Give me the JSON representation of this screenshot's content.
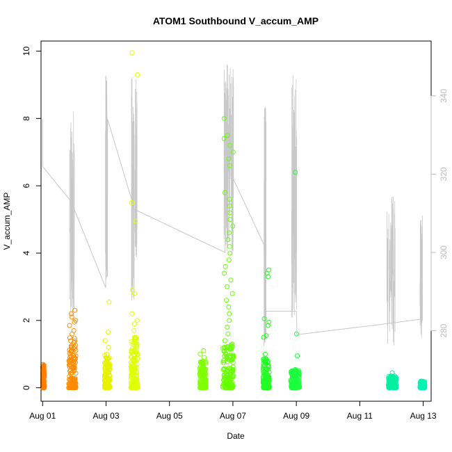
{
  "chart_data": {
    "type": "scatter",
    "title": "ATOM1 Southbound V_accum_AMP",
    "xlabel": "Date",
    "ylabel": "V_accum_AMP",
    "xlim": [
      -0.05,
      12.25
    ],
    "ylim": [
      -0.4,
      10.3
    ],
    "y2lim": [
      262,
      354
    ],
    "x_ticks": [
      0,
      2,
      4,
      6,
      8,
      10,
      12
    ],
    "x_tick_labels": [
      "Aug 01",
      "Aug 03",
      "Aug 05",
      "Aug 07",
      "Aug 09",
      "Aug 11",
      "Aug 13"
    ],
    "y_ticks": [
      0,
      2,
      4,
      6,
      8,
      10
    ],
    "y_tick_labels": [
      "0",
      "2",
      "4",
      "6",
      "8",
      "10"
    ],
    "y2_ticks": [
      280,
      300,
      320,
      340
    ],
    "y2_tick_labels": [
      "280",
      "300",
      "320",
      "340"
    ],
    "clusters": [
      {
        "x_start": 0.0,
        "x_end": 0.05,
        "color": "#ff7f00",
        "max_y": 0.7,
        "outliers": [
          0.02,
          0.04
        ]
      },
      {
        "x_start": 0.82,
        "x_end": 1.05,
        "color": "#ff8c00",
        "max_y": 1.5,
        "outliers": [
          2.3,
          2.2,
          2.1,
          2.0,
          1.95,
          1.85,
          1.7,
          1.6
        ]
      },
      {
        "x_start": 1.95,
        "x_end": 2.12,
        "color": "#e6f200",
        "max_y": 1.0,
        "outliers": [
          2.55,
          1.65,
          1.4,
          1.2
        ]
      },
      {
        "x_start": 2.78,
        "x_end": 3.0,
        "color": "#ddff00",
        "max_y": 1.5,
        "outliers": [
          9.95,
          9.3,
          5.5,
          4.95,
          2.9,
          2.8,
          2.2,
          2.0,
          1.9,
          1.7
        ]
      },
      {
        "x_start": 4.95,
        "x_end": 5.15,
        "color": "#7fff00",
        "max_y": 0.8,
        "outliers": [
          1.1,
          1.0,
          0.9
        ]
      },
      {
        "x_start": 5.68,
        "x_end": 6.02,
        "color": "#66ff00",
        "max_y": 1.3,
        "outliers": [
          8.0,
          7.5,
          7.4,
          7.2,
          7.0,
          6.8,
          6.6,
          5.8,
          5.6,
          5.4,
          5.2,
          5.0,
          4.8,
          4.6,
          4.4,
          4.2,
          4.0,
          3.8,
          3.6,
          3.4,
          3.2,
          3.0,
          2.8,
          2.6,
          2.4,
          2.2,
          2.0,
          1.8,
          1.6,
          1.4
        ]
      },
      {
        "x_start": 6.95,
        "x_end": 7.15,
        "color": "#22ff22",
        "max_y": 0.9,
        "outliers": [
          3.5,
          3.4,
          3.3,
          2.05,
          1.95,
          1.85,
          1.55,
          1.5,
          1.0
        ]
      },
      {
        "x_start": 7.82,
        "x_end": 8.1,
        "color": "#1aff3c",
        "max_y": 0.55,
        "outliers": [
          6.4,
          1.6,
          0.95
        ]
      },
      {
        "x_start": 10.9,
        "x_end": 11.15,
        "color": "#00f0a0",
        "max_y": 0.35,
        "outliers": [
          0.45
        ]
      },
      {
        "x_start": 11.9,
        "x_end": 12.05,
        "color": "#00f5b5",
        "max_y": 0.2,
        "outliers": []
      }
    ],
    "secondary_series": {
      "name": "",
      "color": "#c8c8c8",
      "points": [
        [
          0.0,
          334
        ],
        [
          0.0,
          322
        ],
        [
          0.9,
          313
        ],
        [
          1.99,
          291
        ],
        [
          2.05,
          334
        ],
        [
          2.9,
          311
        ],
        [
          5.75,
          300
        ],
        [
          5.82,
          319
        ],
        [
          6.0,
          319
        ],
        [
          6.98,
          302
        ],
        [
          7.03,
          285
        ],
        [
          8.0,
          285
        ],
        [
          8.02,
          279
        ],
        [
          11.05,
          282
        ],
        [
          11.95,
          283
        ]
      ]
    }
  }
}
